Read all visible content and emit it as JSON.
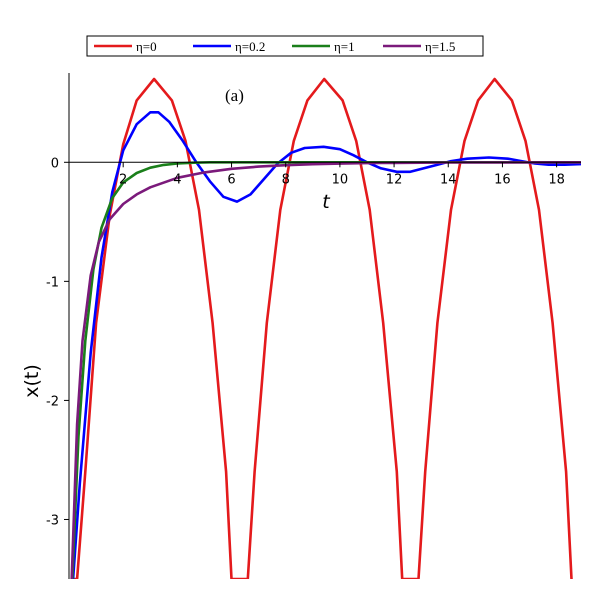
{
  "chart_data": {
    "type": "line",
    "title": "",
    "xlabel": "t",
    "ylabel": "x(t)",
    "annotation": "(a)",
    "xlim": [
      0,
      18.9
    ],
    "ylim": [
      -3.5,
      0.75
    ],
    "x_ticks": [
      2,
      4,
      6,
      8,
      10,
      12,
      14,
      16,
      18
    ],
    "y_ticks": [
      0,
      -1,
      -2,
      -3
    ],
    "x_tick_labels": [
      "2",
      "4",
      "6",
      "8",
      "10",
      "12",
      "14",
      "16",
      "18"
    ],
    "y_tick_labels": [
      "0",
      "-1",
      "-2",
      "-3"
    ],
    "grid": false,
    "legend_position": "top",
    "series": [
      {
        "name": "η=0",
        "color": "#e41a1c",
        "points": [
          [
            0.1,
            -3.5
          ],
          [
            0.3,
            -3.5
          ],
          [
            0.6,
            -2.6
          ],
          [
            1.0,
            -1.35
          ],
          [
            1.5,
            -0.45
          ],
          [
            2.0,
            0.15
          ],
          [
            2.5,
            0.52
          ],
          [
            3.14,
            0.7
          ],
          [
            3.8,
            0.52
          ],
          [
            4.3,
            0.18
          ],
          [
            4.8,
            -0.4
          ],
          [
            5.3,
            -1.35
          ],
          [
            5.8,
            -2.6
          ],
          [
            6.0,
            -3.5
          ],
          [
            6.6,
            -3.5
          ],
          [
            6.85,
            -2.6
          ],
          [
            7.3,
            -1.35
          ],
          [
            7.8,
            -0.4
          ],
          [
            8.3,
            0.18
          ],
          [
            8.8,
            0.52
          ],
          [
            9.42,
            0.7
          ],
          [
            10.1,
            0.52
          ],
          [
            10.6,
            0.18
          ],
          [
            11.1,
            -0.4
          ],
          [
            11.6,
            -1.35
          ],
          [
            12.1,
            -2.6
          ],
          [
            12.3,
            -3.5
          ],
          [
            12.9,
            -3.5
          ],
          [
            13.15,
            -2.6
          ],
          [
            13.6,
            -1.35
          ],
          [
            14.1,
            -0.4
          ],
          [
            14.6,
            0.18
          ],
          [
            15.1,
            0.52
          ],
          [
            15.71,
            0.7
          ],
          [
            16.35,
            0.52
          ],
          [
            16.85,
            0.18
          ],
          [
            17.35,
            -0.4
          ],
          [
            17.85,
            -1.35
          ],
          [
            18.35,
            -2.6
          ],
          [
            18.55,
            -3.5
          ]
        ]
      },
      {
        "name": "η=0.2",
        "color": "#0000ff",
        "points": [
          [
            0.15,
            -3.5
          ],
          [
            0.4,
            -2.7
          ],
          [
            0.8,
            -1.6
          ],
          [
            1.2,
            -0.8
          ],
          [
            1.6,
            -0.25
          ],
          [
            2.0,
            0.1
          ],
          [
            2.5,
            0.32
          ],
          [
            3.0,
            0.42
          ],
          [
            3.3,
            0.42
          ],
          [
            3.7,
            0.34
          ],
          [
            4.2,
            0.18
          ],
          [
            4.7,
            0.0
          ],
          [
            5.2,
            -0.16
          ],
          [
            5.7,
            -0.29
          ],
          [
            6.2,
            -0.33
          ],
          [
            6.7,
            -0.27
          ],
          [
            7.2,
            -0.14
          ],
          [
            7.7,
            -0.01
          ],
          [
            8.2,
            0.08
          ],
          [
            8.7,
            0.12
          ],
          [
            9.4,
            0.13
          ],
          [
            10.0,
            0.11
          ],
          [
            10.5,
            0.06
          ],
          [
            11.0,
            0.0
          ],
          [
            11.5,
            -0.05
          ],
          [
            12.1,
            -0.08
          ],
          [
            12.6,
            -0.08
          ],
          [
            13.1,
            -0.05
          ],
          [
            13.6,
            -0.02
          ],
          [
            14.1,
            0.01
          ],
          [
            14.7,
            0.03
          ],
          [
            15.5,
            0.04
          ],
          [
            16.2,
            0.03
          ],
          [
            16.7,
            0.01
          ],
          [
            17.2,
            -0.01
          ],
          [
            17.7,
            -0.02
          ],
          [
            18.3,
            -0.02
          ],
          [
            18.9,
            -0.015
          ]
        ]
      },
      {
        "name": "η=1",
        "color": "#1a7f1a",
        "points": [
          [
            0.12,
            -3.5
          ],
          [
            0.35,
            -2.3
          ],
          [
            0.6,
            -1.5
          ],
          [
            0.9,
            -0.9
          ],
          [
            1.2,
            -0.55
          ],
          [
            1.6,
            -0.3
          ],
          [
            2.0,
            -0.17
          ],
          [
            2.5,
            -0.09
          ],
          [
            3.0,
            -0.045
          ],
          [
            3.5,
            -0.022
          ],
          [
            4.0,
            -0.01
          ],
          [
            4.6,
            -0.003
          ],
          [
            5.2,
            0.0
          ],
          [
            6.5,
            0.0
          ],
          [
            8.0,
            0.0
          ],
          [
            10.0,
            0.0
          ],
          [
            12.0,
            0.0
          ],
          [
            14.0,
            0.0
          ],
          [
            16.0,
            0.0
          ],
          [
            18.9,
            0.0
          ]
        ]
      },
      {
        "name": "η=1.5",
        "color": "#7b1a7b",
        "points": [
          [
            0.1,
            -3.5
          ],
          [
            0.3,
            -2.2
          ],
          [
            0.5,
            -1.5
          ],
          [
            0.8,
            -0.95
          ],
          [
            1.1,
            -0.67
          ],
          [
            1.5,
            -0.48
          ],
          [
            2.0,
            -0.35
          ],
          [
            2.5,
            -0.27
          ],
          [
            3.0,
            -0.21
          ],
          [
            4.0,
            -0.13
          ],
          [
            5.0,
            -0.085
          ],
          [
            6.0,
            -0.055
          ],
          [
            7.0,
            -0.036
          ],
          [
            8.0,
            -0.024
          ],
          [
            9.0,
            -0.016
          ],
          [
            10.0,
            -0.011
          ],
          [
            11.0,
            -0.007
          ],
          [
            12.0,
            -0.005
          ],
          [
            13.0,
            -0.003
          ],
          [
            14.0,
            -0.002
          ],
          [
            16.0,
            -0.001
          ],
          [
            18.9,
            0.0
          ]
        ]
      }
    ]
  }
}
